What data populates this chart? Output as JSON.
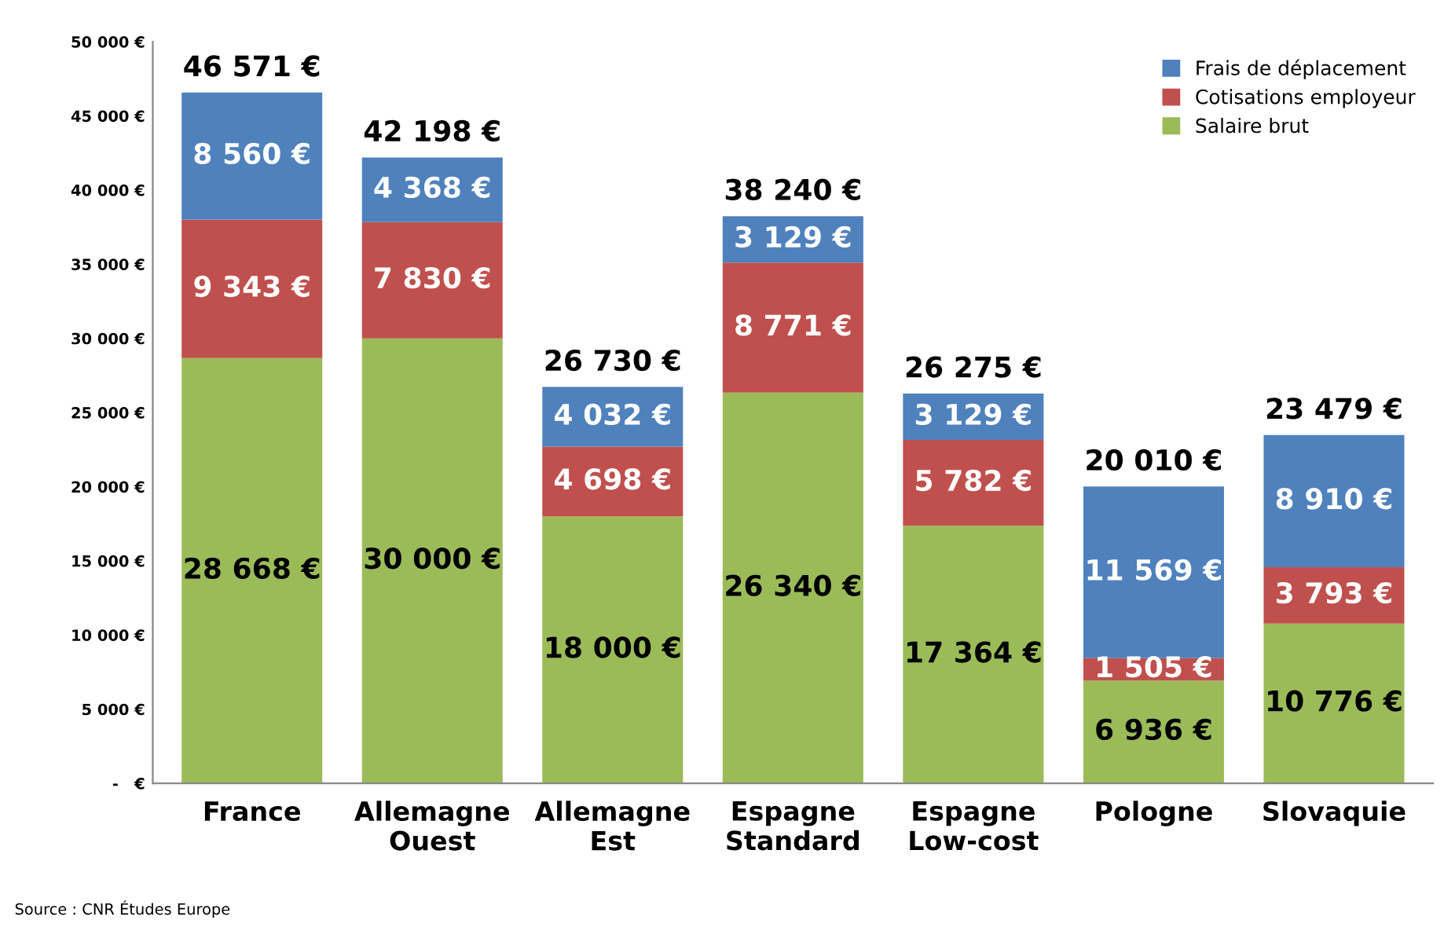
{
  "chart_data": {
    "type": "bar",
    "stacked": true,
    "categories": [
      "France",
      "Allemagne\nOuest",
      "Allemagne\nEst",
      "Espagne\nStandard",
      "Espagne\nLow-cost",
      "Pologne",
      "Slovaquie"
    ],
    "series": [
      {
        "name": "Salaire brut",
        "color": "#9bbb59",
        "values": [
          28668,
          30000,
          18000,
          26340,
          17364,
          6936,
          10776
        ],
        "value_labels": [
          "28 668 €",
          "30 000 €",
          "18 000 €",
          "26 340 €",
          "17 364 €",
          "6 936 €",
          "10 776 €"
        ]
      },
      {
        "name": "Cotisations employeur",
        "color": "#c0504d",
        "values": [
          9343,
          7830,
          4698,
          8771,
          5782,
          1505,
          3793
        ],
        "value_labels": [
          "9 343 €",
          "7 830 €",
          "4 698 €",
          "8 771 €",
          "5 782 €",
          "1 505 €",
          "3 793 €"
        ]
      },
      {
        "name": "Frais de déplacement",
        "color": "#4f81bd",
        "values": [
          8560,
          4368,
          4032,
          3129,
          3129,
          11569,
          8910
        ],
        "value_labels": [
          "8 560 €",
          "4 368 €",
          "4 032 €",
          "3 129 €",
          "3 129 €",
          "11 569 €",
          "8 910 €"
        ]
      }
    ],
    "totals": [
      "46 571 €",
      "42 198 €",
      "26 730 €",
      "38 240 €",
      "26 275 €",
      "20 010 €",
      "23 479 €"
    ],
    "ylim": [
      0,
      50000
    ],
    "yticks": [
      {
        "value": 0,
        "label": "-   €"
      },
      {
        "value": 5000,
        "label": "5 000 €"
      },
      {
        "value": 10000,
        "label": "10 000 €"
      },
      {
        "value": 15000,
        "label": "15 000 €"
      },
      {
        "value": 20000,
        "label": "20 000 €"
      },
      {
        "value": 25000,
        "label": "25 000 €"
      },
      {
        "value": 30000,
        "label": "30 000 €"
      },
      {
        "value": 35000,
        "label": "35 000 €"
      },
      {
        "value": 40000,
        "label": "40 000 €"
      },
      {
        "value": 45000,
        "label": "45 000 €"
      },
      {
        "value": 50000,
        "label": "50 000 €"
      }
    ],
    "grid": false,
    "legend": "top right",
    "annotations": [
      "Source : CNR Études Europe"
    ]
  }
}
